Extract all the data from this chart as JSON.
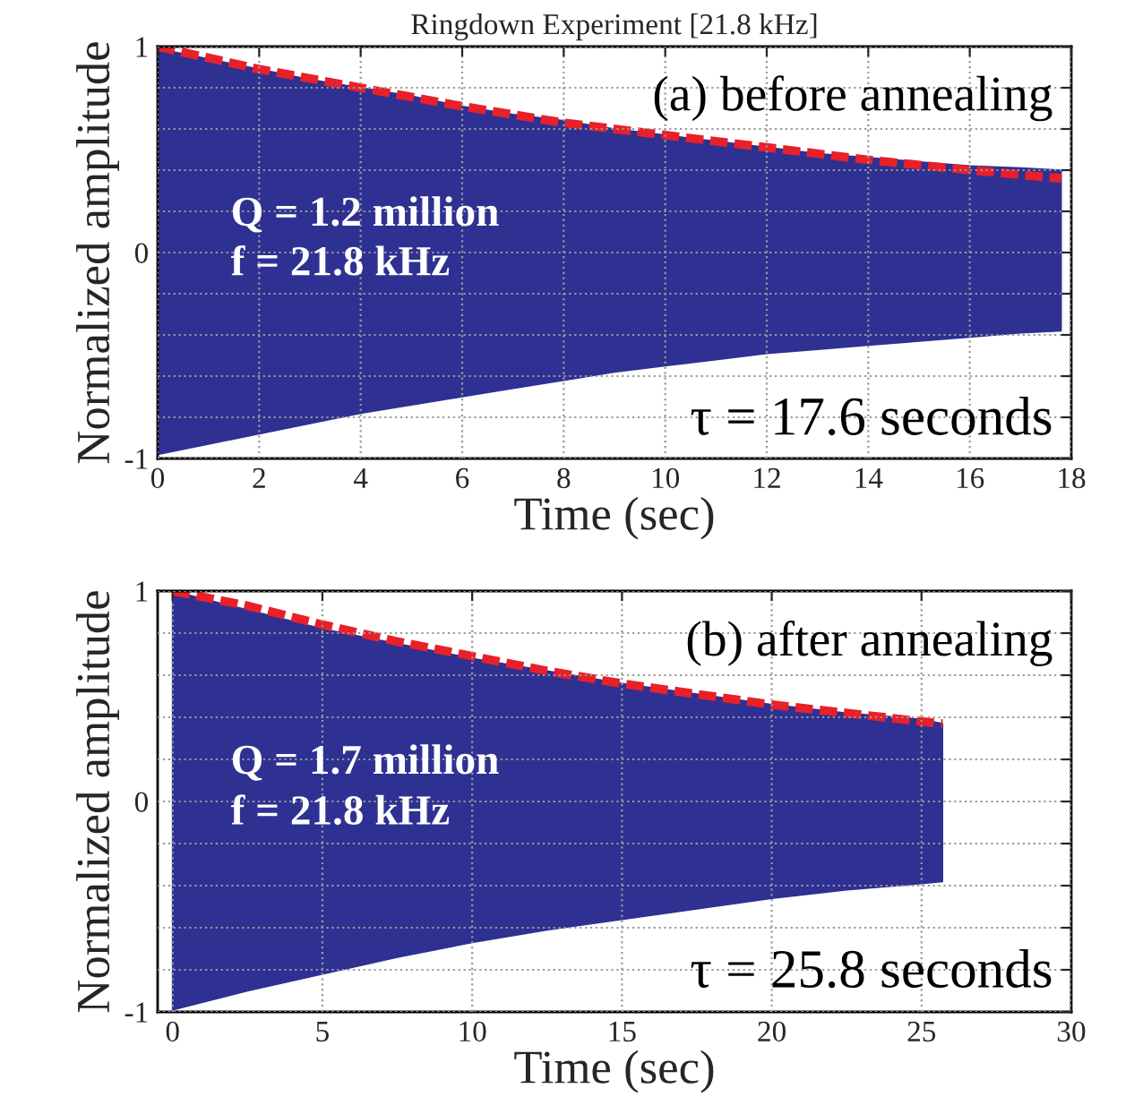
{
  "chart_data": [
    {
      "type": "area",
      "title": "Ringdown Experiment [21.8 kHz]",
      "xlabel": "Time (sec)",
      "ylabel": "Normalized amplitude",
      "xlim": [
        0,
        18
      ],
      "xticks": [
        0,
        2,
        4,
        6,
        8,
        10,
        12,
        14,
        16,
        18
      ],
      "ylim": [
        -1,
        1
      ],
      "yticks": [
        -1,
        {
          "value": -0.8,
          "label": null
        },
        {
          "value": -0.6,
          "label": null
        },
        {
          "value": -0.4,
          "label": null
        },
        {
          "value": -0.2,
          "label": null
        },
        0,
        {
          "value": 0.2,
          "label": null
        },
        {
          "value": 0.4,
          "label": null
        },
        {
          "value": 0.6,
          "label": null
        },
        {
          "value": 0.8,
          "label": null
        },
        1
      ],
      "grid": true,
      "line_style": "dotted",
      "annotations": [
        "(a) before annealing",
        "Q = 1.2 million",
        "f = 21.8 kHz",
        "τ = 17.6 seconds"
      ],
      "series": [
        {
          "type": "area",
          "color": "#2e3192",
          "x": [
            0,
            1,
            2,
            3,
            4,
            5,
            6,
            7,
            8,
            9,
            10,
            11,
            12,
            13,
            14,
            15,
            16,
            17,
            17.8
          ],
          "values": [
            0.99,
            0.94,
            0.89,
            0.84,
            0.8,
            0.76,
            0.71,
            0.67,
            0.64,
            0.6,
            0.57,
            0.54,
            0.51,
            0.48,
            0.46,
            0.44,
            0.42,
            0.41,
            0.4
          ]
        },
        {
          "type": "area",
          "color": "#2e3192",
          "x": [
            0,
            1,
            2,
            3,
            4,
            5,
            6,
            7,
            8,
            9,
            10,
            11,
            12,
            13,
            14,
            15,
            16,
            17,
            17.8
          ],
          "values": [
            -0.98,
            -0.93,
            -0.88,
            -0.83,
            -0.78,
            -0.74,
            -0.7,
            -0.66,
            -0.62,
            -0.58,
            -0.55,
            -0.52,
            -0.49,
            -0.47,
            -0.45,
            -0.43,
            -0.41,
            -0.39,
            -0.38
          ]
        },
        {
          "type": "line",
          "color": "#e8202a",
          "line_style": "dashed",
          "x": [
            0,
            2,
            4,
            6,
            8,
            10,
            12,
            14,
            16,
            17.8
          ],
          "values": [
            1.0,
            0.89,
            0.8,
            0.71,
            0.63,
            0.57,
            0.51,
            0.45,
            0.4,
            0.36
          ]
        }
      ]
    },
    {
      "type": "area",
      "xlabel": "Time (sec)",
      "ylabel": "Normalized amplitude",
      "xlim": [
        -0.5,
        30
      ],
      "xticks": [
        0,
        5,
        10,
        15,
        20,
        25,
        30
      ],
      "ylim": [
        -1,
        1
      ],
      "yticks": [
        -1,
        {
          "value": -0.8,
          "label": null
        },
        {
          "value": -0.6,
          "label": null
        },
        {
          "value": -0.4,
          "label": null
        },
        {
          "value": -0.2,
          "label": null
        },
        0,
        {
          "value": 0.2,
          "label": null
        },
        {
          "value": 0.4,
          "label": null
        },
        {
          "value": 0.6,
          "label": null
        },
        {
          "value": 0.8,
          "label": null
        },
        1
      ],
      "grid": true,
      "line_style": "dotted",
      "annotations": [
        "(b) after annealing",
        "Q = 1.7 million",
        "f = 21.8 kHz",
        "τ = 25.8 seconds"
      ],
      "series": [
        {
          "type": "area",
          "color": "#2e3192",
          "x": [
            0,
            2.5,
            5,
            7.5,
            10,
            12.5,
            15,
            17.5,
            20,
            22.5,
            25,
            25.7
          ],
          "values": [
            1.0,
            0.91,
            0.82,
            0.75,
            0.68,
            0.62,
            0.56,
            0.51,
            0.46,
            0.42,
            0.39,
            0.37
          ]
        },
        {
          "type": "area",
          "color": "#2e3192",
          "x": [
            0,
            2.5,
            5,
            7.5,
            10,
            12.5,
            15,
            17.5,
            20,
            22.5,
            25,
            25.7
          ],
          "values": [
            -0.99,
            -0.9,
            -0.82,
            -0.74,
            -0.67,
            -0.61,
            -0.56,
            -0.51,
            -0.46,
            -0.42,
            -0.39,
            -0.38
          ]
        },
        {
          "type": "line",
          "color": "#e8202a",
          "line_style": "dashed",
          "x": [
            0,
            2.5,
            5,
            7.5,
            10,
            12.5,
            15,
            17.5,
            20,
            22.5,
            25,
            25.7
          ],
          "values": [
            1.0,
            0.93,
            0.84,
            0.76,
            0.69,
            0.62,
            0.56,
            0.51,
            0.46,
            0.42,
            0.38,
            0.37
          ]
        }
      ]
    }
  ]
}
